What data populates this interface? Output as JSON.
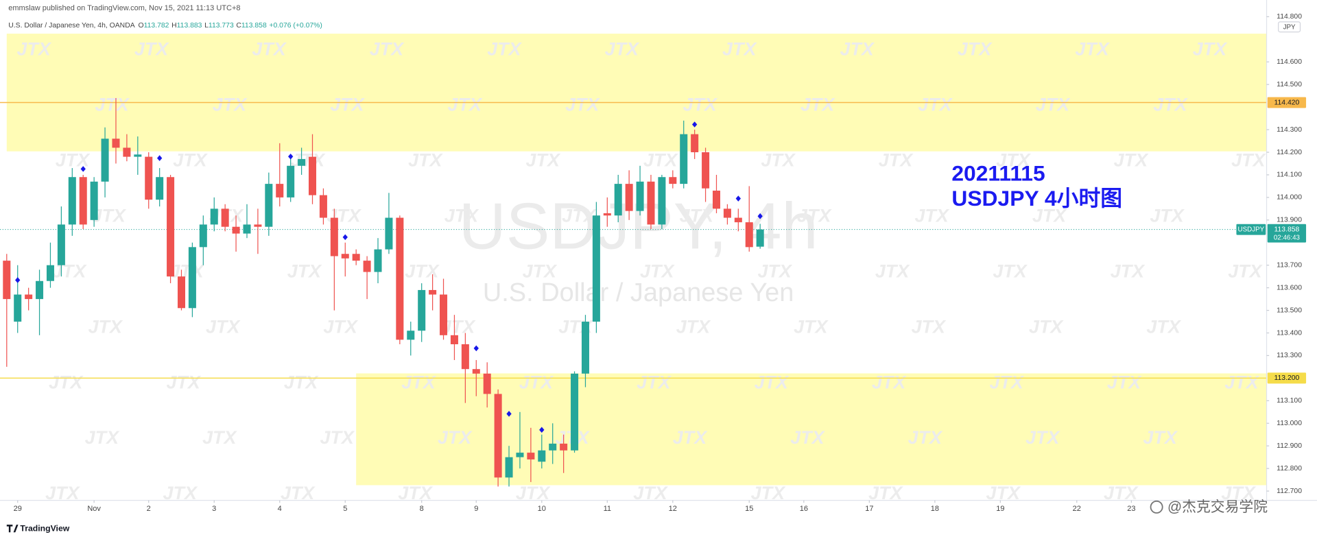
{
  "chart_data": {
    "type": "candlestick",
    "publisher": "emmslaw published on TradingView.com, Nov 15, 2021 11:13 UTC+8",
    "symbol_line": "U.S. Dollar / Japanese Yen, 4h, OANDA",
    "ohlc_letters": [
      "O",
      "H",
      "L",
      "C"
    ],
    "ohlc_values": [
      "113.782",
      "113.883",
      "113.773",
      "113.858"
    ],
    "change": "+0.076 (+0.07%)",
    "watermark_symbol": "USDJPY, 4h",
    "watermark_name": "U.S. Dollar / Japanese Yen",
    "watermark_tile": "JTX",
    "annotation": [
      "20211115",
      "USDJPY 4小时图"
    ],
    "annotation_color": "#1b1bf0",
    "currency": "JPY",
    "footer_logo": "TradingView",
    "credit": "@杰克交易学院",
    "up_color": "#26a69a",
    "down_color": "#ef5350",
    "candles": {
      "open": [
        113.72,
        113.45,
        113.57,
        113.55,
        113.63,
        113.7,
        113.88,
        114.09,
        113.9,
        114.07,
        114.26,
        114.22,
        114.18,
        114.18,
        113.99,
        114.09,
        113.65,
        113.51,
        113.78,
        113.88,
        113.95,
        113.87,
        113.84,
        113.88,
        113.87,
        114.06,
        114.0,
        114.14,
        114.18,
        114.01,
        113.91,
        113.75,
        113.75,
        113.72,
        113.67,
        113.77,
        113.91,
        113.37,
        113.41,
        113.59,
        113.57,
        113.39,
        113.35,
        113.24,
        113.22,
        113.13,
        112.76,
        112.85,
        112.87,
        112.83,
        112.88,
        112.91,
        112.88,
        113.22,
        113.45,
        113.93,
        113.92,
        114.06,
        113.94,
        114.07,
        113.88,
        114.09,
        114.06,
        114.28,
        114.2,
        114.03,
        113.95,
        113.91,
        113.89,
        113.782
      ],
      "high": [
        113.75,
        113.7,
        113.6,
        113.68,
        113.8,
        113.96,
        114.13,
        114.1,
        114.09,
        114.31,
        114.44,
        114.28,
        114.27,
        114.2,
        114.13,
        114.1,
        113.68,
        113.8,
        113.92,
        114.0,
        113.97,
        113.92,
        113.97,
        113.95,
        114.11,
        114.24,
        114.18,
        114.22,
        114.28,
        114.04,
        113.95,
        113.8,
        113.77,
        113.74,
        113.82,
        114.02,
        113.92,
        113.45,
        113.62,
        113.66,
        113.64,
        113.48,
        113.4,
        113.28,
        113.27,
        113.15,
        112.9,
        113.05,
        112.98,
        112.95,
        113.0,
        112.95,
        113.23,
        113.48,
        113.98,
        114.0,
        114.1,
        114.12,
        114.14,
        114.1,
        114.1,
        114.12,
        114.34,
        114.3,
        114.22,
        114.1,
        113.97,
        113.95,
        114.05,
        113.883
      ],
      "low": [
        113.25,
        113.4,
        113.5,
        113.39,
        113.6,
        113.65,
        113.83,
        113.86,
        113.87,
        114.0,
        114.15,
        114.16,
        114.1,
        113.95,
        113.96,
        113.62,
        113.5,
        113.47,
        113.7,
        113.85,
        113.85,
        113.76,
        113.82,
        113.75,
        113.83,
        113.96,
        113.98,
        114.1,
        113.97,
        113.88,
        113.5,
        113.65,
        113.7,
        113.55,
        113.62,
        113.75,
        113.35,
        113.3,
        113.36,
        113.5,
        113.37,
        113.28,
        113.09,
        113.12,
        113.07,
        112.72,
        112.72,
        112.8,
        112.74,
        112.8,
        112.82,
        112.78,
        112.87,
        113.16,
        113.4,
        113.87,
        113.89,
        113.9,
        113.92,
        113.86,
        113.86,
        114.04,
        114.04,
        114.17,
        113.98,
        113.93,
        113.88,
        113.85,
        113.76,
        113.773
      ],
      "close": [
        113.55,
        113.57,
        113.55,
        113.63,
        113.7,
        113.88,
        114.09,
        113.88,
        114.07,
        114.26,
        114.22,
        114.18,
        114.19,
        113.99,
        114.09,
        113.65,
        113.51,
        113.78,
        113.88,
        113.95,
        113.87,
        113.84,
        113.88,
        113.87,
        114.06,
        114.0,
        114.14,
        114.17,
        114.01,
        113.91,
        113.74,
        113.73,
        113.72,
        113.67,
        113.77,
        113.91,
        113.37,
        113.41,
        113.59,
        113.57,
        113.39,
        113.35,
        113.24,
        113.22,
        113.13,
        112.76,
        112.85,
        112.87,
        112.84,
        112.88,
        112.91,
        112.88,
        113.22,
        113.45,
        113.92,
        113.92,
        114.06,
        113.94,
        114.07,
        113.88,
        114.09,
        114.06,
        114.28,
        114.2,
        114.04,
        113.95,
        113.91,
        113.89,
        113.78,
        113.858
      ]
    },
    "markers": {
      "index": [
        1,
        7,
        14,
        26,
        31,
        43,
        46,
        49,
        63,
        67,
        69
      ],
      "values": [
        113.634,
        114.126,
        114.174,
        114.181,
        113.824,
        113.332,
        113.042,
        112.971,
        114.323,
        113.995,
        113.917
      ],
      "color": "#1717e8"
    },
    "zones": [
      {
        "high": 114.725,
        "low": 114.204,
        "start": 0,
        "color": "#fffcb6"
      },
      {
        "high": 113.221,
        "low": 112.726,
        "start": 32,
        "color": "#fffcb6"
      }
    ],
    "hlines": [
      {
        "value": 114.42,
        "label": "114.420",
        "color": "#f7b84b"
      },
      {
        "value": 113.2,
        "label": "113.200",
        "color": "#f5dc4a"
      }
    ],
    "last_price": {
      "value": 113.858,
      "label": "113.858",
      "symbol": "USDJPY",
      "countdown": "02:46:43",
      "color": "#26a69a"
    },
    "ylim": [
      112.659,
      114.874
    ],
    "yticks": [
      {
        "value": 114.8,
        "label": "114.800"
      },
      {
        "value": 114.6,
        "label": "114.600"
      },
      {
        "value": 114.5,
        "label": "114.500"
      },
      {
        "value": 114.3,
        "label": "114.300"
      },
      {
        "value": 114.2,
        "label": "114.200"
      },
      {
        "value": 114.1,
        "label": "114.100"
      },
      {
        "value": 114.0,
        "label": "114.000"
      },
      {
        "value": 113.9,
        "label": "113.900"
      },
      {
        "value": 113.7,
        "label": "113.700"
      },
      {
        "value": 113.6,
        "label": "113.600"
      },
      {
        "value": 113.5,
        "label": "113.500"
      },
      {
        "value": 113.4,
        "label": "113.400"
      },
      {
        "value": 113.3,
        "label": "113.300"
      },
      {
        "value": 113.1,
        "label": "113.100"
      },
      {
        "value": 113.0,
        "label": "113.000"
      },
      {
        "value": 112.9,
        "label": "112.900"
      },
      {
        "value": 112.8,
        "label": "112.800"
      },
      {
        "value": 112.7,
        "label": "112.700"
      }
    ],
    "xticks": [
      {
        "value": 1,
        "label": "29"
      },
      {
        "value": 8,
        "label": "Nov"
      },
      {
        "value": 13,
        "label": "2"
      },
      {
        "value": 19,
        "label": "3"
      },
      {
        "value": 25,
        "label": "4"
      },
      {
        "value": 31,
        "label": "5"
      },
      {
        "value": 38,
        "label": "8"
      },
      {
        "value": 43,
        "label": "9"
      },
      {
        "value": 49,
        "label": "10"
      },
      {
        "value": 55,
        "label": "11"
      },
      {
        "value": 61,
        "label": "12"
      },
      {
        "value": 68,
        "label": "15"
      },
      {
        "value": 73,
        "label": "16"
      },
      {
        "value": 79,
        "label": "17"
      },
      {
        "value": 85,
        "label": "18"
      },
      {
        "value": 91,
        "label": "19"
      },
      {
        "value": 98,
        "label": "22"
      },
      {
        "value": 103,
        "label": "23"
      }
    ],
    "grid": false
  }
}
